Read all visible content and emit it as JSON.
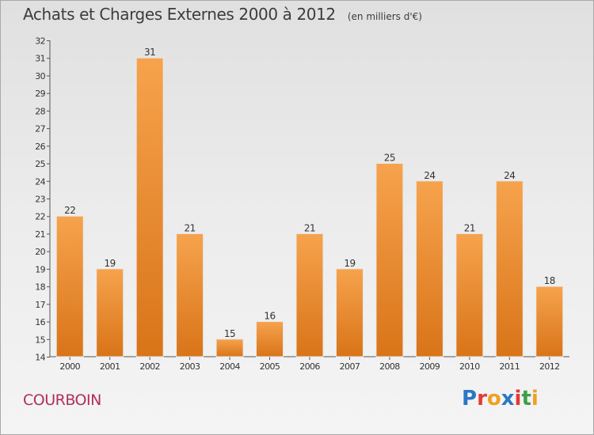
{
  "header": {
    "title": "Achats et Charges Externes 2000 à 2012",
    "subtitle": "(en milliers d'€)"
  },
  "footer": {
    "commune": "COURBOIN",
    "brand": "Proxiti"
  },
  "colors": {
    "bar_light": "#f6a34d",
    "bar_dark": "#d97418",
    "brand_letters": [
      "#2a78c4",
      "#e23a3a",
      "#f0a020",
      "#2a78c4",
      "#e23a3a",
      "#3aa04a",
      "#f0a020"
    ]
  },
  "chart_data": {
    "type": "bar",
    "title": "Achats et Charges Externes 2000 à 2012",
    "subtitle": "(en milliers d'€)",
    "categories": [
      "2000",
      "2001",
      "2002",
      "2003",
      "2004",
      "2005",
      "2006",
      "2007",
      "2008",
      "2009",
      "2010",
      "2011",
      "2012"
    ],
    "values": [
      22,
      19,
      31,
      21,
      15,
      16,
      21,
      19,
      25,
      24,
      21,
      24,
      18
    ],
    "ylim": [
      14,
      32
    ],
    "yticks": [
      14,
      15,
      16,
      17,
      18,
      19,
      20,
      21,
      22,
      23,
      24,
      25,
      26,
      27,
      28,
      29,
      30,
      31,
      32
    ],
    "grid": false,
    "data_labels": true
  }
}
